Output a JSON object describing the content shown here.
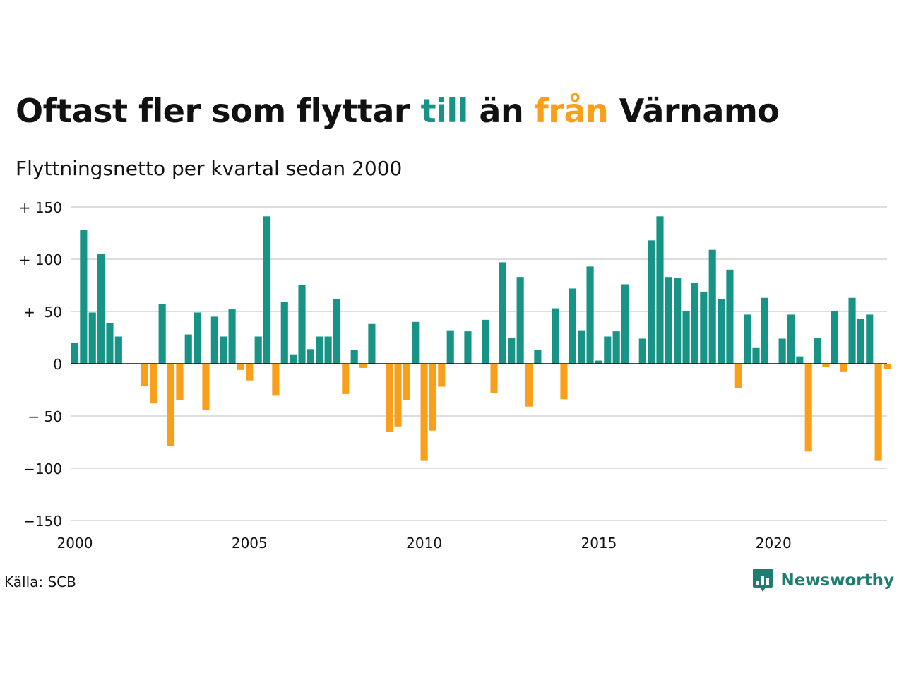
{
  "title": {
    "part1": "Oftast fler som flyttar ",
    "word_in": "till",
    "part2": " än ",
    "word_out": "från",
    "part3": " Värnamo"
  },
  "subtitle": "Flyttningsnetto per kvartal sedan 2000",
  "source": "Källa: SCB",
  "brand": {
    "name": "Newsworthy",
    "icon": "newsworthy-logo-icon"
  },
  "colors": {
    "positive": "#179485",
    "negative": "#F8A01C",
    "gridline": "#dddddd",
    "zeroline": "#111111",
    "brand": "#1E7D70"
  },
  "chart_data": {
    "type": "bar",
    "title": "Oftast fler som flyttar till än från Värnamo",
    "subtitle": "Flyttningsnetto per kvartal sedan 2000",
    "xlabel": "",
    "ylabel": "",
    "ylim": [
      -150,
      150
    ],
    "xlim": [
      2000,
      2023.25
    ],
    "grid": true,
    "yticks": [
      150,
      100,
      50,
      0,
      -50,
      -100,
      -150
    ],
    "yticklabels": [
      "+ 150",
      "+ 100",
      "+  50",
      "0",
      "− 50",
      "−100",
      "−150"
    ],
    "xticks": [
      2000,
      2005,
      2010,
      2015,
      2020
    ],
    "xticklabels": [
      "2000",
      "2005",
      "2010",
      "2015",
      "2020"
    ],
    "start_year": 2000,
    "quarters_per_year": 4,
    "values": [
      20,
      128,
      49,
      105,
      39,
      26,
      0,
      0,
      -21,
      -38,
      57,
      -79,
      -35,
      28,
      49,
      -44,
      45,
      26,
      52,
      -6,
      -16,
      26,
      141,
      -30,
      59,
      9,
      75,
      14,
      26,
      26,
      62,
      -29,
      13,
      -4,
      38,
      0,
      -65,
      -60,
      -35,
      40,
      -93,
      -64,
      -22,
      32,
      0,
      31,
      0,
      42,
      -28,
      97,
      25,
      83,
      -41,
      13,
      0,
      53,
      -34,
      72,
      32,
      93,
      3,
      26,
      31,
      76,
      0,
      24,
      118,
      141,
      83,
      82,
      50,
      77,
      69,
      109,
      62,
      90,
      -23,
      47,
      15,
      63,
      0,
      24,
      47,
      7,
      -84,
      25,
      -3,
      50,
      -8,
      63,
      43,
      47,
      -93,
      -5
    ]
  }
}
